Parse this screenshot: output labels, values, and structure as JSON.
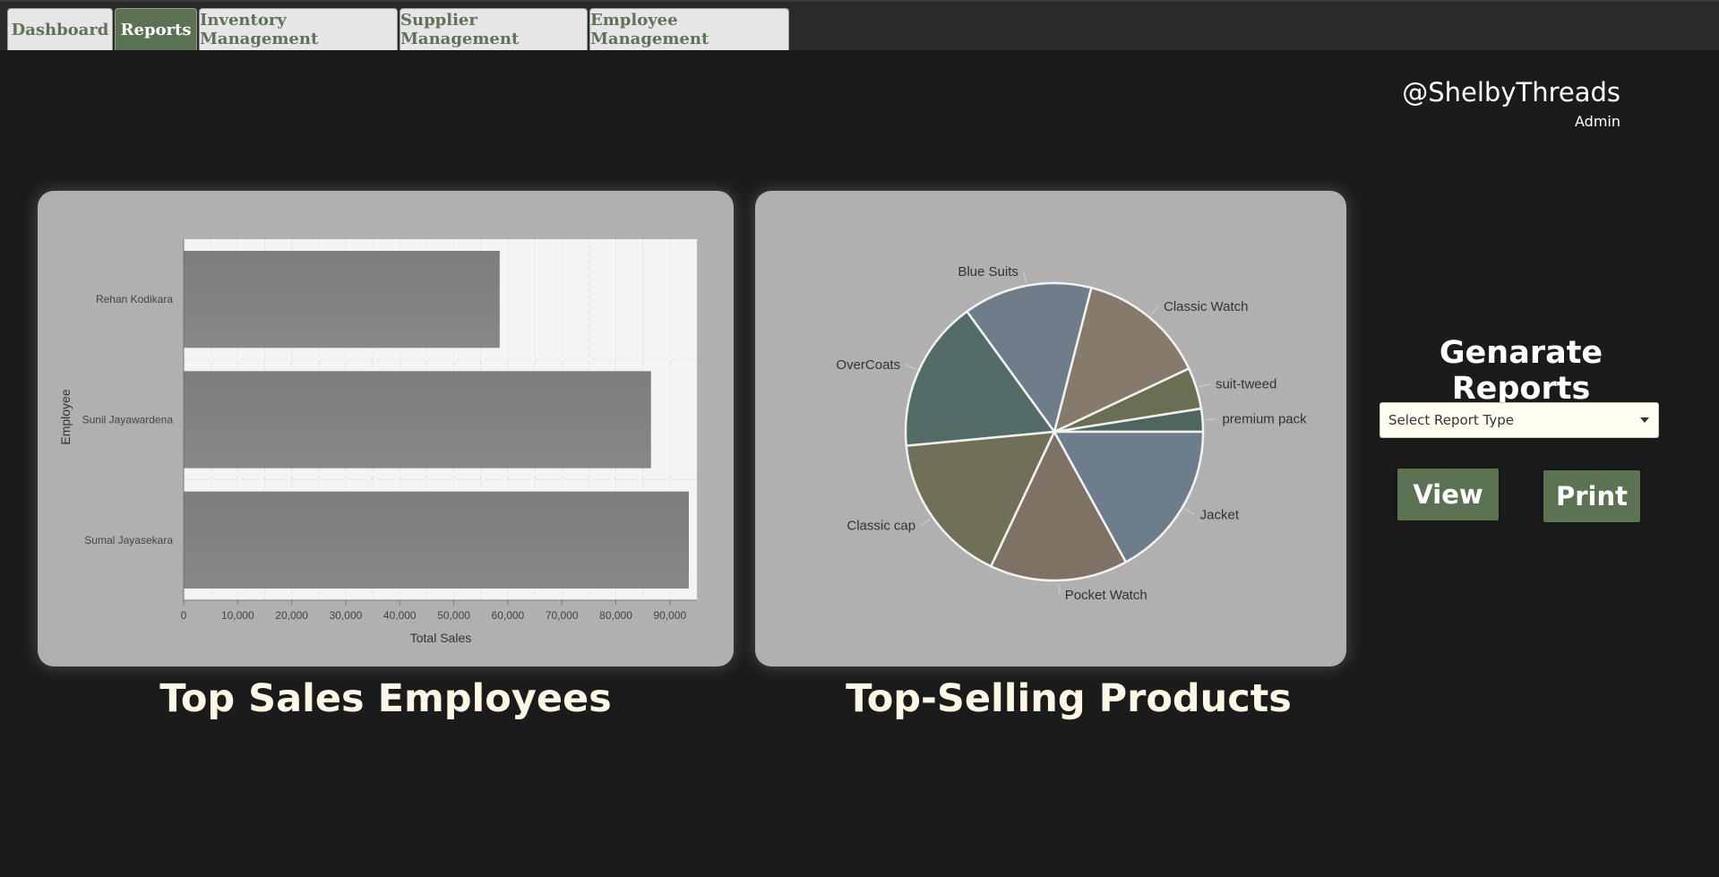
{
  "tabs": [
    {
      "label": "Dashboard",
      "active": false
    },
    {
      "label": "Reports",
      "active": true
    },
    {
      "label": "Inventory Management",
      "active": false
    },
    {
      "label": "Supplier Management",
      "active": false
    },
    {
      "label": "Employee Management",
      "active": false
    }
  ],
  "brand": {
    "handle": "@ShelbyThreads",
    "role": "Admin"
  },
  "panels": {
    "employees_title": "Top Sales Employees",
    "products_title": "Top-Selling Products"
  },
  "reports": {
    "title": "Genarate Reports",
    "select_placeholder": "Select Report Type",
    "view_label": "View",
    "print_label": "Print"
  },
  "chart_data": [
    {
      "type": "bar",
      "orientation": "horizontal",
      "categories": [
        "Rehan Kodikara",
        "Sunil Jayawardena",
        "Sumal Jayasekara"
      ],
      "values": [
        58500,
        86500,
        93500
      ],
      "xlabel": "Total Sales",
      "ylabel": "Employee",
      "xlim": [
        0,
        95000
      ],
      "xticks": [
        "0",
        "10,000",
        "20,000",
        "30,000",
        "40,000",
        "50,000",
        "60,000",
        "70,000",
        "80,000",
        "90,000"
      ],
      "grid": true,
      "bar_color": "#808080"
    },
    {
      "type": "pie",
      "labels": [
        "premium pack",
        "suit-tweed",
        "Classic Watch",
        "Blue Suits",
        "OverCoats",
        "Classic cap",
        "Pocket Watch",
        "Jacket"
      ],
      "values": [
        2.5,
        4.5,
        14,
        14,
        16.5,
        16.5,
        15,
        17
      ],
      "colors": [
        "#4e6560",
        "#6a6e52",
        "#857a6c",
        "#6f7d8a",
        "#536c67",
        "#6f7057",
        "#7d7263",
        "#6e7d8c"
      ]
    }
  ]
}
